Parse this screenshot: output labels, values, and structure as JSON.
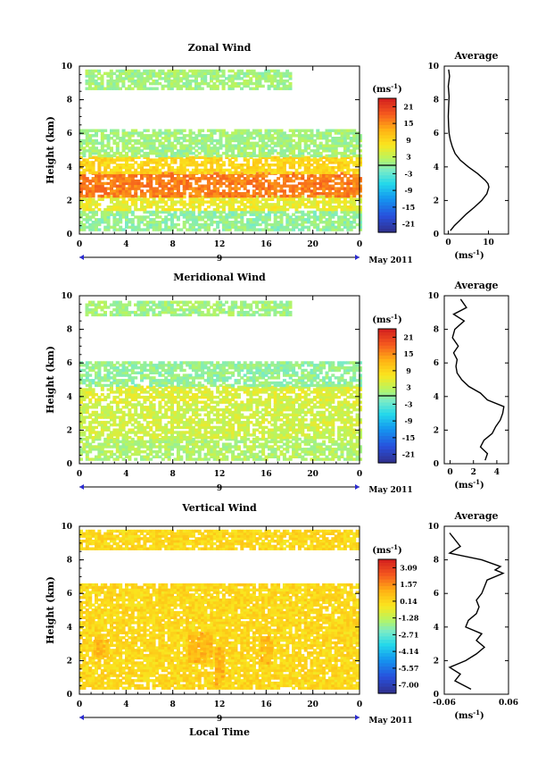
{
  "chart_data": [
    {
      "type": "heatmap",
      "title": "Zonal Wind",
      "ylabel": "Height (km)",
      "xlabel": "",
      "x_ticks": [
        "0",
        "4",
        "8",
        "12",
        "16",
        "20",
        "0"
      ],
      "y_ticks": [
        "0",
        "2",
        "4",
        "6",
        "8",
        "10"
      ],
      "xlim": [
        0,
        24
      ],
      "ylim": [
        0,
        10
      ],
      "date_label": "9",
      "month_label": "May 2011",
      "colorbar": {
        "unit": "(ms⁻¹)",
        "ticks": [
          "21",
          "15",
          "9",
          "3",
          "-3",
          "-9",
          "-15",
          "-21"
        ]
      },
      "layers": [
        {
          "value": 0,
          "t0": 0.0,
          "t1": 24.0,
          "h0": 0.2,
          "h1": 1.4
        },
        {
          "value": 6,
          "t0": 0.0,
          "t1": 24.0,
          "h0": 1.4,
          "h1": 2.2
        },
        {
          "value": 16,
          "t0": 0.0,
          "t1": 24.0,
          "h0": 2.2,
          "h1": 3.6
        },
        {
          "value": 9,
          "t0": 0.0,
          "t1": 24.0,
          "h0": 3.6,
          "h1": 4.6
        },
        {
          "value": 1,
          "t0": 0.0,
          "t1": 24.0,
          "h0": 4.6,
          "h1": 6.2
        },
        {
          "value": 1,
          "t0": 0.5,
          "t1": 18.0,
          "h0": 8.6,
          "h1": 9.7
        }
      ],
      "coverage": 0.75,
      "average_profile": {
        "title": "Average",
        "xlabel": "(ms⁻¹)",
        "x_ticks": [
          "0",
          "10"
        ],
        "y_ticks": [
          "0",
          "2",
          "4",
          "6",
          "8",
          "10"
        ],
        "xlim": [
          -1,
          15
        ],
        "ylim": [
          0,
          10
        ],
        "height": [
          0.2,
          0.5,
          0.8,
          1.2,
          1.6,
          2.0,
          2.4,
          2.8,
          3.0,
          3.2,
          3.6,
          4.0,
          4.4,
          4.8,
          5.2,
          5.6,
          6.0,
          6.4,
          7.0,
          7.6,
          8.2,
          8.8,
          9.4,
          9.8
        ],
        "value": [
          0.5,
          1.5,
          2.8,
          4.5,
          6.5,
          8.3,
          9.6,
          10.1,
          9.9,
          9.2,
          7.3,
          5.0,
          3.0,
          1.7,
          1.0,
          0.5,
          0.2,
          0.1,
          0.0,
          0.1,
          0.2,
          0.0,
          0.3,
          0.1
        ]
      }
    },
    {
      "type": "heatmap",
      "title": "Meridional Wind",
      "ylabel": "Height (km)",
      "xlabel": "",
      "x_ticks": [
        "0",
        "4",
        "8",
        "12",
        "16",
        "20",
        "0"
      ],
      "y_ticks": [
        "0",
        "2",
        "4",
        "6",
        "8",
        "10"
      ],
      "xlim": [
        0,
        24
      ],
      "ylim": [
        0,
        10
      ],
      "date_label": "9",
      "month_label": "May 2011",
      "colorbar": {
        "unit": "(ms⁻¹)",
        "ticks": [
          "21",
          "15",
          "9",
          "3",
          "-3",
          "-9",
          "-15",
          "-21"
        ]
      },
      "layers": [
        {
          "value": 2,
          "t0": 0.0,
          "t1": 24.0,
          "h0": 0.2,
          "h1": 1.5
        },
        {
          "value": 4,
          "t0": 0.0,
          "t1": 24.0,
          "h0": 1.5,
          "h1": 3.6
        },
        {
          "value": 5,
          "t0": 0.0,
          "t1": 24.0,
          "h0": 3.6,
          "h1": 4.6
        },
        {
          "value": 0,
          "t0": 0.0,
          "t1": 24.0,
          "h0": 4.6,
          "h1": 6.1
        },
        {
          "value": 1,
          "t0": 0.5,
          "t1": 18.0,
          "h0": 8.8,
          "h1": 9.6
        }
      ],
      "coverage": 0.72,
      "average_profile": {
        "title": "Average",
        "xlabel": "(ms⁻¹)",
        "x_ticks": [
          "0",
          "2",
          "4"
        ],
        "y_ticks": [
          "0",
          "2",
          "4",
          "6",
          "8",
          "10"
        ],
        "xlim": [
          -0.5,
          5
        ],
        "ylim": [
          0,
          10
        ],
        "height": [
          0.2,
          0.6,
          1.0,
          1.4,
          1.8,
          2.2,
          2.6,
          3.0,
          3.4,
          3.8,
          4.2,
          4.6,
          5.0,
          5.4,
          5.8,
          6.2,
          6.6,
          7.0,
          7.5,
          8.0,
          8.5,
          8.9,
          9.3,
          9.8
        ],
        "value": [
          3.0,
          3.2,
          2.6,
          2.9,
          3.6,
          3.9,
          4.3,
          4.5,
          4.6,
          3.2,
          2.6,
          1.6,
          1.0,
          0.6,
          0.5,
          0.6,
          0.3,
          0.7,
          0.2,
          0.4,
          1.2,
          0.3,
          1.4,
          0.9
        ]
      }
    },
    {
      "type": "heatmap",
      "title": "Vertical Wind",
      "ylabel": "Height (km)",
      "xlabel": "Local Time",
      "x_ticks": [
        "0",
        "4",
        "8",
        "12",
        "16",
        "20",
        "0"
      ],
      "y_ticks": [
        "0",
        "2",
        "4",
        "6",
        "8",
        "10"
      ],
      "xlim": [
        0,
        24
      ],
      "ylim": [
        0,
        10
      ],
      "date_label": "9",
      "month_label": "May 2011",
      "colorbar": {
        "unit": "(ms⁻¹)",
        "ticks": [
          "3.09",
          "1.57",
          "0.14",
          "-1.28",
          "-2.71",
          "-4.14",
          "-5.57",
          "-7.00"
        ]
      },
      "layers": [
        {
          "value": 0.14,
          "t0": 0.0,
          "t1": 23.7,
          "h0": 0.3,
          "h1": 6.5
        },
        {
          "value": 0.14,
          "t0": 0.0,
          "t1": 23.7,
          "h0": 8.6,
          "h1": 9.8
        },
        {
          "value": 0.9,
          "t0": 9.3,
          "t1": 11.2,
          "h0": 1.9,
          "h1": 3.6
        },
        {
          "value": 0.9,
          "t0": 11.6,
          "t1": 12.3,
          "h0": 0.4,
          "h1": 2.8
        },
        {
          "value": 0.9,
          "t0": 1.2,
          "t1": 2.4,
          "h0": 2.2,
          "h1": 3.2
        },
        {
          "value": 0.9,
          "t0": 15.5,
          "t1": 16.4,
          "h0": 1.8,
          "h1": 3.4
        }
      ],
      "coverage": 0.86,
      "average_profile": {
        "title": "Average",
        "xlabel": "(ms⁻¹)",
        "x_ticks": [
          "-0.06",
          "0.06"
        ],
        "y_ticks": [
          "0",
          "2",
          "4",
          "6",
          "8",
          "10"
        ],
        "xlim": [
          -0.06,
          0.06
        ],
        "ylim": [
          0,
          10
        ],
        "height": [
          0.3,
          0.8,
          1.2,
          1.6,
          2.0,
          2.4,
          2.8,
          3.2,
          3.6,
          4.0,
          4.4,
          4.8,
          5.2,
          5.6,
          6.0,
          6.4,
          6.8,
          7.2,
          7.4,
          7.6,
          8.0,
          8.4,
          8.8,
          9.2,
          9.6
        ],
        "value": [
          -0.01,
          -0.04,
          -0.03,
          -0.05,
          -0.02,
          0.0,
          0.015,
          0.0,
          0.01,
          -0.02,
          -0.015,
          0.0,
          0.005,
          0.0,
          0.01,
          0.015,
          0.02,
          0.05,
          0.035,
          0.045,
          0.01,
          -0.05,
          -0.03,
          -0.04,
          -0.05
        ]
      }
    }
  ]
}
